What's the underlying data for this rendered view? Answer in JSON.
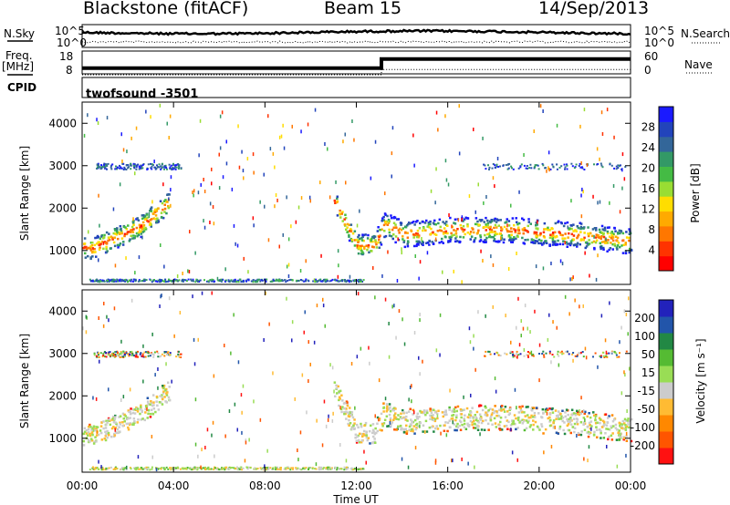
{
  "header": {
    "station": "Blackstone (fitACF)",
    "beam": "Beam 15",
    "date": "14/Sep/2013"
  },
  "left_labels": {
    "nsky": "N.Sky",
    "freq": "Freq.",
    "freq_unit": "[MHz]",
    "cpid": "CPID"
  },
  "right_labels": {
    "nsearch": "N.Search",
    "nave": "Nave"
  },
  "cpid_text": "twofsound -3501",
  "chart_data": [
    {
      "type": "line",
      "name": "noise",
      "series": [
        {
          "name": "N.Sky",
          "style": "solid"
        },
        {
          "name": "N.Search",
          "style": "dotted"
        }
      ],
      "left_ticks": [
        "10^5",
        "10^0"
      ],
      "right_ticks": [
        "10^5",
        "10^0"
      ],
      "xlim": [
        0,
        24
      ]
    },
    {
      "type": "line",
      "name": "freq_nave",
      "left_ticks": [
        "18",
        "8"
      ],
      "right_ticks": [
        "60",
        "0"
      ],
      "freq_series": {
        "x": [
          0,
          13.1,
          13.1,
          24
        ],
        "y": [
          10.5,
          10.5,
          14.5,
          14.5
        ]
      },
      "nave_series": {
        "x": [
          0,
          13.1,
          13.1,
          24
        ],
        "y": [
          0,
          0,
          14,
          14
        ]
      },
      "freq_ylim": [
        8,
        18
      ],
      "nave_ylim": [
        0,
        60
      ]
    },
    {
      "type": "heatmap",
      "name": "power",
      "ylabel": "Slant Range [km]",
      "yticks": [
        "4000",
        "3000",
        "2000",
        "1000"
      ],
      "ylim": [
        200,
        4500
      ],
      "xlim": [
        0,
        24
      ],
      "colorbar_label": "Power [dB]",
      "colorbar_ticks": [
        "28",
        "24",
        "20",
        "16",
        "12",
        "8",
        "4"
      ],
      "colorbar_colors": [
        "#1a1aff",
        "#2244bb",
        "#336699",
        "#339966",
        "#44bb44",
        "#99dd33",
        "#ffdd00",
        "#ffaa00",
        "#ff7700",
        "#ff3300",
        "#ff0000"
      ]
    },
    {
      "type": "heatmap",
      "name": "velocity",
      "ylabel": "Slant Range [km]",
      "yticks": [
        "4000",
        "3000",
        "2000",
        "1000"
      ],
      "ylim": [
        200,
        4500
      ],
      "xlim": [
        0,
        24
      ],
      "xticks": [
        "00:00",
        "04:00",
        "08:00",
        "12:00",
        "16:00",
        "20:00",
        "00:00"
      ],
      "xlabel": "Time UT",
      "colorbar_label": "Velocity [m s⁻¹]",
      "colorbar_ticks": [
        "200",
        "100",
        "50",
        "15",
        "-15",
        "-50",
        "-100",
        "-200"
      ],
      "colorbar_colors": [
        "#2222bb",
        "#2255aa",
        "#228844",
        "#55bb33",
        "#99dd55",
        "#cccccc",
        "#ffbb33",
        "#ff8800",
        "#ff5500",
        "#ff1111"
      ]
    }
  ],
  "scatter_bands": {
    "note": "",
    "segments": []
  }
}
